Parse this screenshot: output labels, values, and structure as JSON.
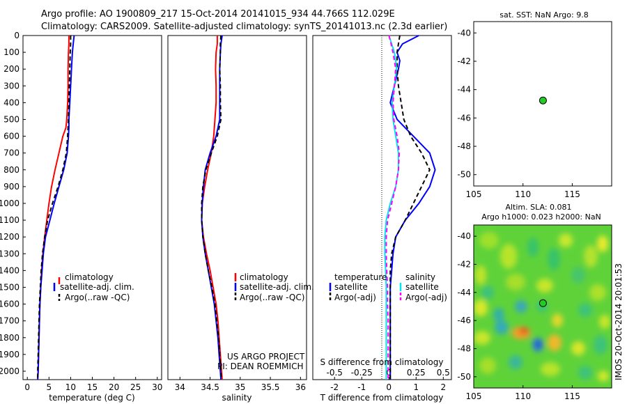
{
  "header": {
    "line1": "Argo profile: AO 1900809_217 15-Oct-2014 20141015_934 44.766S 112.029E",
    "line2": "Climatology: CARS2009. Satellite-adjusted climatology: synTS_20141013.nc (2.3d earlier)"
  },
  "colors": {
    "climatology": "#ff0000",
    "satellite": "#0000ff",
    "argo": "#000000",
    "salinity_satellite": "#00e5ee",
    "salinity_argo": "#ff00ff"
  },
  "credit": {
    "line1": "US ARGO PROJECT",
    "line2": "PI: DEAN ROEMMICH"
  },
  "watermark": "IMOS 20-Oct-2014 20:01:53",
  "chart_data": [
    {
      "type": "line",
      "id": "temperature",
      "xlabel": "temperature (deg C)",
      "xlim": [
        -1,
        31
      ],
      "xticks": [
        0,
        5,
        10,
        15,
        20,
        25,
        30
      ],
      "ylim": [
        0,
        2050
      ],
      "yticks": [
        0,
        100,
        200,
        300,
        400,
        500,
        600,
        700,
        800,
        900,
        1000,
        1100,
        1200,
        1300,
        1400,
        1500,
        1600,
        1700,
        1800,
        1900,
        2000
      ],
      "depth": [
        0,
        50,
        100,
        200,
        300,
        400,
        500,
        550,
        600,
        700,
        800,
        900,
        1000,
        1100,
        1200,
        1300,
        1400,
        1500,
        1600,
        1700,
        1800,
        1900,
        2000,
        2050
      ],
      "legend": [
        "climatology",
        "satellite-adj. clim.",
        "Argo(..raw -QC)"
      ],
      "series": [
        {
          "name": "climatology",
          "color": "red",
          "values": [
            9.6,
            9.6,
            9.5,
            9.4,
            9.4,
            9.3,
            9.1,
            8.9,
            8.2,
            7.3,
            6.4,
            5.6,
            5.0,
            4.5,
            4.0,
            3.6,
            3.3,
            3.1,
            2.9,
            2.8,
            2.7,
            2.6,
            2.5,
            2.4
          ]
        },
        {
          "name": "satellite-adj. clim.",
          "color": "blue",
          "values": [
            10.8,
            10.6,
            10.4,
            10.2,
            10.0,
            9.8,
            9.6,
            9.6,
            9.5,
            9.2,
            8.4,
            7.3,
            6.2,
            5.2,
            4.2,
            3.7,
            3.4,
            3.1,
            2.9,
            2.8,
            2.7,
            2.6,
            2.5,
            2.4
          ]
        },
        {
          "name": "Argo(..raw -QC)",
          "color": "black",
          "values": [
            10.0,
            10.0,
            9.9,
            9.8,
            9.7,
            9.6,
            9.5,
            9.4,
            9.3,
            9.0,
            8.2,
            7.1,
            5.8,
            4.7,
            4.0,
            3.5,
            3.2,
            3.0,
            2.8,
            2.7,
            2.6,
            2.5,
            2.4,
            2.4
          ]
        }
      ]
    },
    {
      "type": "line",
      "id": "salinity",
      "xlabel": "salinity",
      "xlim": [
        33.8,
        36.1
      ],
      "xticks": [
        34,
        34.5,
        35,
        35.5,
        36
      ],
      "xtick_labels": [
        "34",
        "34.5",
        "35",
        "35.5",
        "36"
      ],
      "ylim": [
        0,
        2050
      ],
      "depth": [
        0,
        50,
        100,
        200,
        300,
        400,
        500,
        600,
        700,
        800,
        900,
        1000,
        1100,
        1200,
        1300,
        1400,
        1500,
        1600,
        1700,
        1800,
        1900,
        2000,
        2050
      ],
      "legend": [
        "climatology",
        "satellite-adj. clim.",
        "Argo(..raw -QC)"
      ],
      "series": [
        {
          "name": "climatology",
          "color": "red",
          "values": [
            34.62,
            34.62,
            34.6,
            34.59,
            34.6,
            34.6,
            34.58,
            34.56,
            34.52,
            34.46,
            34.41,
            34.37,
            34.36,
            34.39,
            34.44,
            34.5,
            34.55,
            34.6,
            34.63,
            34.65,
            34.67,
            34.69,
            34.7
          ]
        },
        {
          "name": "satellite-adj. clim.",
          "color": "blue",
          "values": [
            34.7,
            34.68,
            34.67,
            34.66,
            34.66,
            34.66,
            34.66,
            34.6,
            34.5,
            34.42,
            34.39,
            34.37,
            34.36,
            34.38,
            34.42,
            34.47,
            34.52,
            34.57,
            34.6,
            34.63,
            34.65,
            34.67,
            34.68
          ]
        },
        {
          "name": "Argo(..raw -QC)",
          "color": "black",
          "values": [
            34.68,
            34.67,
            34.67,
            34.66,
            34.67,
            34.67,
            34.68,
            34.62,
            34.52,
            34.43,
            34.38,
            34.36,
            34.36,
            34.38,
            34.42,
            34.47,
            34.53,
            34.58,
            34.61,
            34.64,
            34.66,
            34.68,
            34.69
          ]
        }
      ]
    },
    {
      "type": "line",
      "id": "difference",
      "xlabel": "T difference from climatology",
      "x2label": "S difference from climatology",
      "xlim": [
        -2.8,
        2.3
      ],
      "xticks": [
        -2,
        -1,
        0,
        1,
        2
      ],
      "x2ticks": [
        -0.5,
        -0.25,
        0,
        0.25,
        0.5
      ],
      "x2tick_labels": [
        "-0.5",
        "-0.25",
        "0",
        "0.25",
        "0.5"
      ],
      "ylim": [
        0,
        2050
      ],
      "depth": [
        0,
        50,
        100,
        150,
        200,
        300,
        400,
        500,
        600,
        700,
        800,
        900,
        1000,
        1100,
        1200,
        1300,
        1400,
        1500,
        1600,
        1700,
        1800,
        1900,
        2000,
        2050
      ],
      "legend_groups": [
        {
          "title": "temperature",
          "items": [
            "satellite",
            "Argo(-adj)"
          ]
        },
        {
          "title": "salinity",
          "items": [
            "satellite",
            "Argo(-adj)"
          ]
        }
      ],
      "series": [
        {
          "name": "satellite",
          "group": "temperature",
          "color": "blue",
          "values": [
            1.1,
            0.5,
            0.3,
            0.4,
            0.35,
            0.2,
            0.05,
            0.3,
            0.9,
            1.5,
            1.7,
            1.5,
            1.1,
            0.6,
            0.25,
            0.15,
            0.1,
            0.05,
            0.05,
            0.05,
            0.05,
            0.05,
            0.05,
            0.05
          ]
        },
        {
          "name": "Argo(-adj)",
          "group": "temperature",
          "color": "black",
          "values": [
            0.4,
            0.35,
            0.3,
            0.3,
            0.3,
            0.35,
            0.45,
            0.55,
            0.8,
            1.2,
            1.5,
            1.2,
            0.9,
            0.6,
            0.25,
            0.1,
            0.05,
            0.05,
            0.05,
            0.05,
            0.05,
            0.05,
            0.05,
            0.05
          ]
        },
        {
          "name": "satellite",
          "group": "salinity",
          "color": "cyan",
          "values": [
            0.0,
            0.1,
            0.2,
            0.25,
            0.28,
            0.2,
            0.12,
            0.15,
            0.25,
            0.35,
            0.35,
            0.25,
            0.05,
            -0.1,
            -0.15,
            -0.15,
            -0.12,
            -0.1,
            -0.1,
            -0.1,
            -0.1,
            -0.1,
            -0.1,
            -0.1
          ]
        },
        {
          "name": "Argo(-adj)",
          "group": "salinity",
          "color": "magenta",
          "values": [
            0.0,
            0.08,
            0.15,
            0.2,
            0.25,
            0.2,
            0.15,
            0.18,
            0.3,
            0.38,
            0.35,
            0.25,
            0.1,
            -0.05,
            -0.1,
            -0.1,
            -0.08,
            -0.05,
            -0.05,
            -0.03,
            -0.03,
            -0.03,
            -0.03,
            -0.03
          ]
        }
      ]
    },
    {
      "type": "scatter",
      "id": "sst_map",
      "title": "sat. SST: NaN Argo: 9.8",
      "xlim": [
        105,
        119
      ],
      "ylim": [
        -50.8,
        -39.2
      ],
      "xticks": [
        105,
        110,
        115
      ],
      "yticks": [
        -40,
        -42,
        -44,
        -46,
        -48,
        -50
      ],
      "points": [
        {
          "x": 112.029,
          "y": -44.766
        }
      ]
    },
    {
      "type": "heatmap",
      "id": "sla_map",
      "title_line1": "Altim. SLA: 0.081",
      "title_line2": "Argo h1000: 0.023 h2000: NaN",
      "xlim": [
        105,
        119
      ],
      "ylim": [
        -50.8,
        -39.2
      ],
      "xticks": [
        105,
        110,
        115
      ],
      "yticks": [
        -40,
        -42,
        -44,
        -46,
        -48,
        -50
      ],
      "points": [
        {
          "x": 112.029,
          "y": -44.766
        }
      ]
    }
  ]
}
